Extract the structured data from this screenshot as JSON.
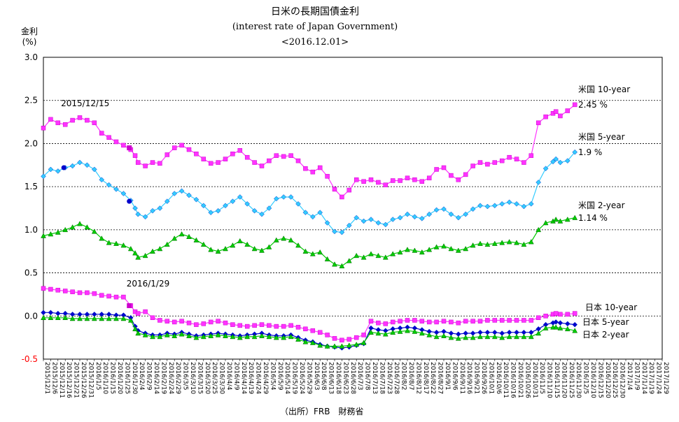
{
  "title": {
    "main": "日米の長期国債金利",
    "sub": "(interest rate of Japan Government)",
    "date": "<2016.12.01>"
  },
  "y_unit": {
    "line1": "金利",
    "line2": "(%)"
  },
  "source": "（出所）FRB　財務省",
  "chart_data": {
    "type": "line",
    "ylim": [
      -0.5,
      3.0
    ],
    "yticks": [
      "3.0",
      "2.5",
      "2.0",
      "1.5",
      "1.0",
      "0.5",
      "0.0",
      "-0.5"
    ],
    "grid": true,
    "x_tick_labels": [
      "2015/12/1",
      "2015/12/6",
      "2015/12/11",
      "2015/12/16",
      "2015/12/21",
      "2015/12/26",
      "2015/12/31",
      "2016/1/5",
      "2016/1/10",
      "2016/1/15",
      "2016/1/20",
      "2016/1/25",
      "2016/1/30",
      "2016/2/4",
      "2016/2/9",
      "2016/2/14",
      "2016/2/19",
      "2016/2/24",
      "2016/2/29",
      "2016/3/5",
      "2016/3/10",
      "2016/3/15",
      "2016/3/20",
      "2016/3/25",
      "2016/3/30",
      "2016/4/4",
      "2016/4/9",
      "2016/4/14",
      "2016/4/19",
      "2016/4/24",
      "2016/4/29",
      "2016/5/4",
      "2016/5/9",
      "2016/5/14",
      "2016/5/19",
      "2016/5/24",
      "2016/5/29",
      "2016/6/3",
      "2016/6/8",
      "2016/6/13",
      "2016/6/18",
      "2016/6/23",
      "2016/6/28",
      "2016/7/3",
      "2016/7/8",
      "2016/7/13",
      "2016/7/18",
      "2016/7/23",
      "2016/7/28",
      "2016/8/2",
      "2016/8/7",
      "2016/8/12",
      "2016/8/17",
      "2016/8/22",
      "2016/8/27",
      "2016/9/1",
      "2016/9/6",
      "2016/9/11",
      "2016/9/16",
      "2016/9/21",
      "2016/9/26",
      "2016/10/1",
      "2016/10/6",
      "2016/10/11",
      "2016/10/16",
      "2016/10/21",
      "2016/10/26",
      "2016/10/31",
      "2016/11/5",
      "2016/11/10",
      "2016/11/15",
      "2016/11/20",
      "2016/11/25",
      "2016/11/30",
      "2016/12/5",
      "2016/12/10",
      "2016/12/15",
      "2016/12/20",
      "2016/12/25",
      "2016/12/30",
      "2017/1/4",
      "2017/1/9",
      "2017/1/14",
      "2017/1/19",
      "2017/1/24",
      "2017/1/29"
    ],
    "series": [
      {
        "name": "米国 10-year",
        "color": "#ff33ff",
        "marker": "square",
        "x": [
          0,
          5,
          10,
          15,
          20,
          25,
          30,
          35,
          40,
          45,
          50,
          55,
          60,
          63,
          65,
          70,
          75,
          80,
          85,
          90,
          95,
          100,
          105,
          110,
          115,
          120,
          125,
          130,
          135,
          140,
          145,
          150,
          155,
          160,
          165,
          170,
          175,
          180,
          185,
          190,
          195,
          200,
          205,
          210,
          215,
          220,
          225,
          230,
          235,
          240,
          245,
          250,
          255,
          260,
          265,
          270,
          275,
          280,
          285,
          290,
          295,
          300,
          305,
          310,
          315,
          320,
          325,
          330,
          335,
          340,
          345,
          350,
          352,
          355,
          360,
          365
        ],
        "y": [
          2.18,
          2.28,
          2.24,
          2.22,
          2.27,
          2.3,
          2.27,
          2.24,
          2.12,
          2.07,
          2.02,
          1.98,
          1.93,
          1.86,
          1.78,
          1.74,
          1.78,
          1.77,
          1.87,
          1.95,
          1.98,
          1.93,
          1.88,
          1.82,
          1.77,
          1.78,
          1.82,
          1.88,
          1.92,
          1.84,
          1.78,
          1.74,
          1.8,
          1.86,
          1.85,
          1.86,
          1.8,
          1.71,
          1.67,
          1.72,
          1.62,
          1.47,
          1.38,
          1.46,
          1.58,
          1.56,
          1.58,
          1.55,
          1.52,
          1.57,
          1.57,
          1.6,
          1.58,
          1.56,
          1.6,
          1.7,
          1.72,
          1.63,
          1.58,
          1.64,
          1.74,
          1.78,
          1.76,
          1.78,
          1.8,
          1.84,
          1.82,
          1.78,
          1.86,
          2.24,
          2.31,
          2.35,
          2.37,
          2.32,
          2.38,
          2.45
        ]
      },
      {
        "name": "米国 5-year",
        "color": "#33ccff",
        "marker": "diamond",
        "x": [
          0,
          5,
          10,
          15,
          20,
          25,
          30,
          35,
          40,
          45,
          50,
          55,
          60,
          63,
          65,
          70,
          75,
          80,
          85,
          90,
          95,
          100,
          105,
          110,
          115,
          120,
          125,
          130,
          135,
          140,
          145,
          150,
          155,
          160,
          165,
          170,
          175,
          180,
          185,
          190,
          195,
          200,
          205,
          210,
          215,
          220,
          225,
          230,
          235,
          240,
          245,
          250,
          255,
          260,
          265,
          270,
          275,
          280,
          285,
          290,
          295,
          300,
          305,
          310,
          315,
          320,
          325,
          330,
          335,
          340,
          345,
          350,
          352,
          355,
          360,
          365
        ],
        "y": [
          1.62,
          1.7,
          1.68,
          1.72,
          1.74,
          1.78,
          1.75,
          1.7,
          1.58,
          1.52,
          1.47,
          1.42,
          1.34,
          1.25,
          1.18,
          1.15,
          1.22,
          1.25,
          1.33,
          1.42,
          1.45,
          1.4,
          1.35,
          1.28,
          1.2,
          1.22,
          1.28,
          1.33,
          1.38,
          1.3,
          1.22,
          1.18,
          1.25,
          1.36,
          1.38,
          1.38,
          1.3,
          1.2,
          1.15,
          1.2,
          1.08,
          0.98,
          0.97,
          1.05,
          1.14,
          1.1,
          1.12,
          1.08,
          1.06,
          1.12,
          1.14,
          1.18,
          1.15,
          1.13,
          1.18,
          1.23,
          1.24,
          1.18,
          1.14,
          1.18,
          1.24,
          1.28,
          1.27,
          1.28,
          1.3,
          1.32,
          1.3,
          1.27,
          1.3,
          1.55,
          1.71,
          1.79,
          1.82,
          1.78,
          1.8,
          1.9
        ]
      },
      {
        "name": "米国 2-year",
        "color": "#00cc00",
        "marker": "triangle",
        "x": [
          0,
          5,
          10,
          15,
          20,
          25,
          30,
          35,
          40,
          45,
          50,
          55,
          60,
          63,
          65,
          70,
          75,
          80,
          85,
          90,
          95,
          100,
          105,
          110,
          115,
          120,
          125,
          130,
          135,
          140,
          145,
          150,
          155,
          160,
          165,
          170,
          175,
          180,
          185,
          190,
          195,
          200,
          205,
          210,
          215,
          220,
          225,
          230,
          235,
          240,
          245,
          250,
          255,
          260,
          265,
          270,
          275,
          280,
          285,
          290,
          295,
          300,
          305,
          310,
          315,
          320,
          325,
          330,
          335,
          340,
          345,
          350,
          352,
          355,
          360,
          365
        ],
        "y": [
          0.93,
          0.95,
          0.97,
          1.0,
          1.03,
          1.07,
          1.03,
          0.98,
          0.9,
          0.85,
          0.84,
          0.82,
          0.78,
          0.73,
          0.68,
          0.7,
          0.75,
          0.78,
          0.83,
          0.9,
          0.95,
          0.92,
          0.88,
          0.83,
          0.77,
          0.75,
          0.78,
          0.82,
          0.87,
          0.83,
          0.78,
          0.76,
          0.8,
          0.88,
          0.9,
          0.88,
          0.82,
          0.75,
          0.72,
          0.74,
          0.66,
          0.6,
          0.58,
          0.64,
          0.7,
          0.68,
          0.72,
          0.7,
          0.68,
          0.72,
          0.74,
          0.77,
          0.76,
          0.74,
          0.77,
          0.8,
          0.81,
          0.78,
          0.76,
          0.78,
          0.82,
          0.84,
          0.83,
          0.84,
          0.85,
          0.86,
          0.85,
          0.83,
          0.86,
          1.0,
          1.08,
          1.1,
          1.12,
          1.1,
          1.12,
          1.14
        ]
      },
      {
        "name": "日本 10-year",
        "color": "#ff33ff",
        "marker": "square",
        "x": [
          0,
          5,
          10,
          15,
          20,
          25,
          30,
          35,
          40,
          45,
          50,
          55,
          60,
          63,
          65,
          70,
          75,
          80,
          85,
          90,
          95,
          100,
          105,
          110,
          115,
          120,
          125,
          130,
          135,
          140,
          145,
          150,
          155,
          160,
          165,
          170,
          175,
          180,
          185,
          190,
          195,
          200,
          205,
          210,
          215,
          220,
          225,
          230,
          235,
          240,
          245,
          250,
          255,
          260,
          265,
          270,
          275,
          280,
          285,
          290,
          295,
          300,
          305,
          310,
          315,
          320,
          325,
          330,
          335,
          340,
          345,
          350,
          352,
          355,
          360,
          365
        ],
        "y": [
          0.32,
          0.31,
          0.3,
          0.29,
          0.28,
          0.27,
          0.27,
          0.26,
          0.24,
          0.23,
          0.22,
          0.22,
          0.12,
          0.05,
          0.03,
          0.05,
          -0.02,
          -0.05,
          -0.06,
          -0.07,
          -0.06,
          -0.08,
          -0.1,
          -0.09,
          -0.07,
          -0.06,
          -0.08,
          -0.1,
          -0.11,
          -0.12,
          -0.11,
          -0.1,
          -0.11,
          -0.12,
          -0.12,
          -0.11,
          -0.13,
          -0.15,
          -0.17,
          -0.19,
          -0.22,
          -0.26,
          -0.28,
          -0.27,
          -0.25,
          -0.22,
          -0.06,
          -0.08,
          -0.09,
          -0.07,
          -0.06,
          -0.05,
          -0.05,
          -0.06,
          -0.07,
          -0.07,
          -0.06,
          -0.07,
          -0.08,
          -0.06,
          -0.06,
          -0.06,
          -0.05,
          -0.05,
          -0.05,
          -0.05,
          -0.05,
          -0.05,
          -0.05,
          -0.02,
          0.0,
          0.02,
          0.03,
          0.02,
          0.02,
          0.03
        ]
      },
      {
        "name": "日本 5-year",
        "color": "#0000cc",
        "marker": "diamond",
        "x": [
          0,
          5,
          10,
          15,
          20,
          25,
          30,
          35,
          40,
          45,
          50,
          55,
          60,
          63,
          65,
          70,
          75,
          80,
          85,
          90,
          95,
          100,
          105,
          110,
          115,
          120,
          125,
          130,
          135,
          140,
          145,
          150,
          155,
          160,
          165,
          170,
          175,
          180,
          185,
          190,
          195,
          200,
          205,
          210,
          215,
          220,
          225,
          230,
          235,
          240,
          245,
          250,
          255,
          260,
          265,
          270,
          275,
          280,
          285,
          290,
          295,
          300,
          305,
          310,
          315,
          320,
          325,
          330,
          335,
          340,
          345,
          350,
          352,
          355,
          360,
          365
        ],
        "y": [
          0.04,
          0.04,
          0.03,
          0.03,
          0.02,
          0.02,
          0.02,
          0.02,
          0.02,
          0.02,
          0.01,
          0.01,
          -0.02,
          -0.12,
          -0.17,
          -0.2,
          -0.22,
          -0.22,
          -0.2,
          -0.21,
          -0.19,
          -0.21,
          -0.23,
          -0.22,
          -0.21,
          -0.2,
          -0.21,
          -0.22,
          -0.23,
          -0.22,
          -0.21,
          -0.2,
          -0.22,
          -0.23,
          -0.23,
          -0.22,
          -0.25,
          -0.28,
          -0.3,
          -0.33,
          -0.35,
          -0.36,
          -0.37,
          -0.36,
          -0.34,
          -0.32,
          -0.14,
          -0.16,
          -0.17,
          -0.15,
          -0.14,
          -0.13,
          -0.14,
          -0.16,
          -0.18,
          -0.19,
          -0.18,
          -0.2,
          -0.21,
          -0.2,
          -0.2,
          -0.19,
          -0.19,
          -0.19,
          -0.2,
          -0.19,
          -0.19,
          -0.19,
          -0.19,
          -0.15,
          -0.1,
          -0.08,
          -0.07,
          -0.08,
          -0.09,
          -0.1
        ]
      },
      {
        "name": "日本 2-year",
        "color": "#00cc00",
        "marker": "triangle",
        "x": [
          0,
          5,
          10,
          15,
          20,
          25,
          30,
          35,
          40,
          45,
          50,
          55,
          60,
          63,
          65,
          70,
          75,
          80,
          85,
          90,
          95,
          100,
          105,
          110,
          115,
          120,
          125,
          130,
          135,
          140,
          145,
          150,
          155,
          160,
          165,
          170,
          175,
          180,
          185,
          190,
          195,
          200,
          205,
          210,
          215,
          220,
          225,
          230,
          235,
          240,
          245,
          250,
          255,
          260,
          265,
          270,
          275,
          280,
          285,
          290,
          295,
          300,
          305,
          310,
          315,
          320,
          325,
          330,
          335,
          340,
          345,
          350,
          352,
          355,
          360,
          365
        ],
        "y": [
          -0.02,
          -0.02,
          -0.02,
          -0.02,
          -0.03,
          -0.03,
          -0.03,
          -0.03,
          -0.03,
          -0.03,
          -0.03,
          -0.03,
          -0.05,
          -0.15,
          -0.2,
          -0.22,
          -0.24,
          -0.24,
          -0.22,
          -0.23,
          -0.21,
          -0.23,
          -0.25,
          -0.24,
          -0.23,
          -0.22,
          -0.23,
          -0.24,
          -0.25,
          -0.24,
          -0.24,
          -0.23,
          -0.24,
          -0.25,
          -0.25,
          -0.24,
          -0.27,
          -0.3,
          -0.31,
          -0.34,
          -0.35,
          -0.35,
          -0.35,
          -0.34,
          -0.33,
          -0.31,
          -0.19,
          -0.2,
          -0.21,
          -0.19,
          -0.18,
          -0.17,
          -0.18,
          -0.2,
          -0.22,
          -0.24,
          -0.23,
          -0.25,
          -0.26,
          -0.25,
          -0.25,
          -0.24,
          -0.24,
          -0.24,
          -0.25,
          -0.24,
          -0.24,
          -0.24,
          -0.24,
          -0.2,
          -0.14,
          -0.13,
          -0.13,
          -0.14,
          -0.15,
          -0.17
        ]
      }
    ],
    "annotations": [
      {
        "text": "2015/12/15",
        "x": 14,
        "y": 2.45
      },
      {
        "text": "2016/1/29",
        "x": 59,
        "y": 0.36
      }
    ],
    "series_labels": [
      {
        "name": "米国 10-year",
        "value": "2.45 %"
      },
      {
        "name": "米国 5-year",
        "value": "1.9 %"
      },
      {
        "name": "米国 2-year",
        "value": "1.14 %"
      },
      {
        "name": "日本 10-year"
      },
      {
        "name": "日本 5-year"
      },
      {
        "name": "日本 2-year"
      }
    ],
    "highlight_points": [
      {
        "series": "米国 10-year",
        "x": 59,
        "y": 1.95
      },
      {
        "series": "米国 5-year",
        "x": 14,
        "y": 1.72
      },
      {
        "series": "米国 5-year",
        "x": 59,
        "y": 1.33
      },
      {
        "series": "日本 10-year",
        "x": 59,
        "y": 0.12
      }
    ]
  }
}
